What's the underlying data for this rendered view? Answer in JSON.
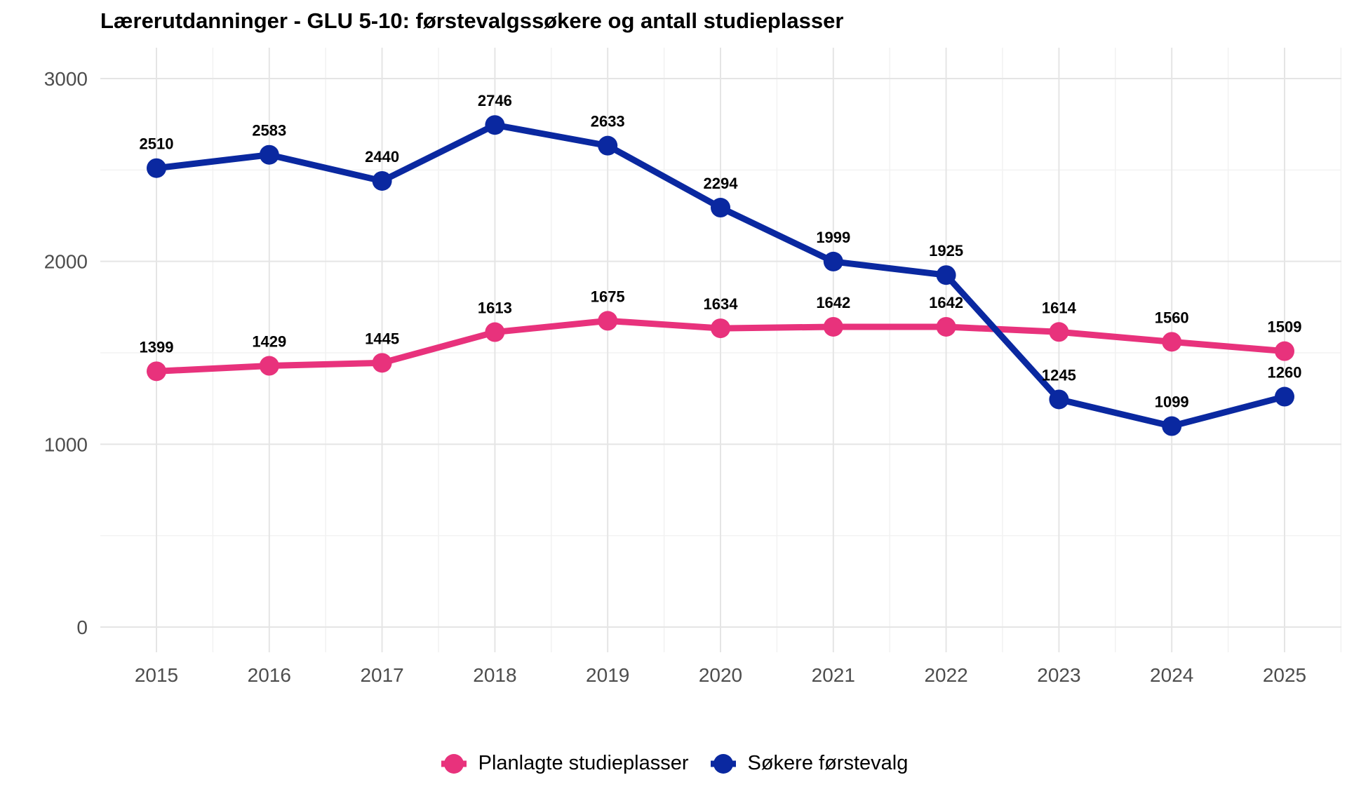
{
  "chart_data": {
    "type": "line",
    "title": "Lærerutdanninger - GLU 5-10: førstevalgssøkere og antall studieplasser",
    "xlabel": "",
    "ylabel": "",
    "x": [
      "2015",
      "2016",
      "2017",
      "2018",
      "2019",
      "2020",
      "2021",
      "2022",
      "2023",
      "2024",
      "2025"
    ],
    "ylim": [
      0,
      3000
    ],
    "yticks": [
      0,
      1000,
      2000,
      3000
    ],
    "grid": true,
    "legend_position": "bottom",
    "series": [
      {
        "name": "Planlagte studieplasser",
        "color": "#E8327C",
        "values": [
          1399,
          1429,
          1445,
          1613,
          1675,
          1634,
          1642,
          1642,
          1614,
          1560,
          1509
        ]
      },
      {
        "name": "Søkere førstevalg",
        "color": "#0A28A0",
        "values": [
          2510,
          2583,
          2440,
          2746,
          2633,
          2294,
          1999,
          1925,
          1245,
          1099,
          1260
        ]
      }
    ]
  }
}
